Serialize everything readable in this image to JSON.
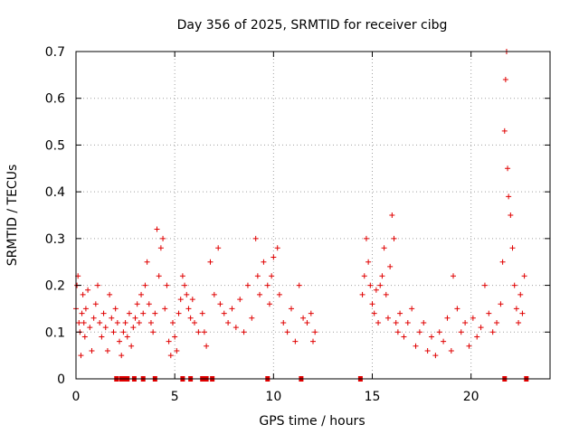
{
  "chart_data": {
    "type": "scatter",
    "title": "Day 356 of 2025, SRMTID for receiver cibg",
    "xlabel": "GPS time / hours",
    "ylabel": "SRMTID / TECUs",
    "xlim": [
      0,
      24
    ],
    "ylim": [
      0,
      0.7
    ],
    "xticks": [
      0,
      5,
      10,
      15,
      20
    ],
    "yticks": [
      0,
      0.1,
      0.2,
      0.3,
      0.4,
      0.5,
      0.6,
      0.7
    ],
    "xtick_labels": [
      "0",
      "5",
      "10",
      "15",
      "20"
    ],
    "ytick_labels": [
      "0",
      "0.1",
      "0.2",
      "0.3",
      "0.4",
      "0.5",
      "0.6",
      "0.7"
    ],
    "grid": true,
    "marker": "plus",
    "color": "#e00000",
    "series": [
      {
        "name": "SRMTID",
        "points": [
          [
            0.0,
            0.15
          ],
          [
            0.05,
            0.2
          ],
          [
            0.1,
            0.22
          ],
          [
            0.15,
            0.12
          ],
          [
            0.2,
            0.1
          ],
          [
            0.25,
            0.05
          ],
          [
            0.3,
            0.14
          ],
          [
            0.35,
            0.18
          ],
          [
            0.4,
            0.12
          ],
          [
            0.45,
            0.09
          ],
          [
            0.5,
            0.15
          ],
          [
            0.6,
            0.19
          ],
          [
            0.7,
            0.11
          ],
          [
            0.8,
            0.06
          ],
          [
            0.9,
            0.13
          ],
          [
            1.0,
            0.16
          ],
          [
            1.1,
            0.2
          ],
          [
            1.2,
            0.12
          ],
          [
            1.3,
            0.09
          ],
          [
            1.4,
            0.14
          ],
          [
            1.5,
            0.11
          ],
          [
            1.6,
            0.06
          ],
          [
            1.7,
            0.18
          ],
          [
            1.8,
            0.13
          ],
          [
            1.9,
            0.1
          ],
          [
            2.0,
            0.15
          ],
          [
            2.1,
            0.12
          ],
          [
            2.2,
            0.08
          ],
          [
            2.3,
            0.05
          ],
          [
            2.4,
            0.1
          ],
          [
            2.5,
            0.12
          ],
          [
            2.6,
            0.09
          ],
          [
            2.7,
            0.14
          ],
          [
            2.8,
            0.07
          ],
          [
            2.9,
            0.11
          ],
          [
            3.0,
            0.13
          ],
          [
            3.1,
            0.16
          ],
          [
            3.2,
            0.12
          ],
          [
            3.3,
            0.18
          ],
          [
            3.4,
            0.14
          ],
          [
            3.5,
            0.2
          ],
          [
            3.6,
            0.25
          ],
          [
            3.7,
            0.16
          ],
          [
            3.8,
            0.12
          ],
          [
            3.9,
            0.1
          ],
          [
            4.0,
            0.14
          ],
          [
            4.1,
            0.32
          ],
          [
            4.2,
            0.22
          ],
          [
            4.3,
            0.28
          ],
          [
            4.4,
            0.3
          ],
          [
            4.5,
            0.15
          ],
          [
            4.6,
            0.2
          ],
          [
            4.7,
            0.08
          ],
          [
            4.8,
            0.05
          ],
          [
            4.9,
            0.12
          ],
          [
            5.0,
            0.09
          ],
          [
            5.1,
            0.06
          ],
          [
            5.2,
            0.14
          ],
          [
            5.3,
            0.17
          ],
          [
            5.4,
            0.22
          ],
          [
            5.5,
            0.2
          ],
          [
            5.6,
            0.18
          ],
          [
            5.7,
            0.15
          ],
          [
            5.8,
            0.13
          ],
          [
            5.9,
            0.17
          ],
          [
            6.0,
            0.12
          ],
          [
            6.2,
            0.1
          ],
          [
            6.4,
            0.14
          ],
          [
            6.5,
            0.1
          ],
          [
            6.6,
            0.07
          ],
          [
            6.8,
            0.25
          ],
          [
            7.0,
            0.18
          ],
          [
            7.2,
            0.28
          ],
          [
            7.3,
            0.16
          ],
          [
            7.5,
            0.14
          ],
          [
            7.7,
            0.12
          ],
          [
            7.9,
            0.15
          ],
          [
            8.1,
            0.11
          ],
          [
            8.3,
            0.17
          ],
          [
            8.5,
            0.1
          ],
          [
            8.7,
            0.2
          ],
          [
            8.9,
            0.13
          ],
          [
            9.1,
            0.3
          ],
          [
            9.2,
            0.22
          ],
          [
            9.3,
            0.18
          ],
          [
            9.5,
            0.25
          ],
          [
            9.7,
            0.2
          ],
          [
            9.8,
            0.16
          ],
          [
            9.9,
            0.22
          ],
          [
            10.0,
            0.26
          ],
          [
            10.2,
            0.28
          ],
          [
            10.3,
            0.18
          ],
          [
            10.5,
            0.12
          ],
          [
            10.7,
            0.1
          ],
          [
            10.9,
            0.15
          ],
          [
            11.1,
            0.08
          ],
          [
            11.3,
            0.2
          ],
          [
            11.5,
            0.13
          ],
          [
            11.7,
            0.12
          ],
          [
            11.9,
            0.14
          ],
          [
            12.0,
            0.08
          ],
          [
            12.1,
            0.1
          ],
          [
            14.5,
            0.18
          ],
          [
            14.6,
            0.22
          ],
          [
            14.7,
            0.3
          ],
          [
            14.8,
            0.25
          ],
          [
            14.9,
            0.2
          ],
          [
            15.0,
            0.16
          ],
          [
            15.1,
            0.14
          ],
          [
            15.2,
            0.19
          ],
          [
            15.3,
            0.12
          ],
          [
            15.4,
            0.2
          ],
          [
            15.5,
            0.22
          ],
          [
            15.6,
            0.28
          ],
          [
            15.7,
            0.18
          ],
          [
            15.8,
            0.13
          ],
          [
            15.9,
            0.24
          ],
          [
            16.0,
            0.35
          ],
          [
            16.1,
            0.3
          ],
          [
            16.2,
            0.12
          ],
          [
            16.3,
            0.1
          ],
          [
            16.4,
            0.14
          ],
          [
            16.6,
            0.09
          ],
          [
            16.8,
            0.12
          ],
          [
            17.0,
            0.15
          ],
          [
            17.2,
            0.07
          ],
          [
            17.4,
            0.1
          ],
          [
            17.6,
            0.12
          ],
          [
            17.8,
            0.06
          ],
          [
            18.0,
            0.09
          ],
          [
            18.2,
            0.05
          ],
          [
            18.4,
            0.1
          ],
          [
            18.6,
            0.08
          ],
          [
            18.8,
            0.13
          ],
          [
            19.0,
            0.06
          ],
          [
            19.1,
            0.22
          ],
          [
            19.3,
            0.15
          ],
          [
            19.5,
            0.1
          ],
          [
            19.7,
            0.12
          ],
          [
            19.9,
            0.07
          ],
          [
            20.1,
            0.13
          ],
          [
            20.3,
            0.09
          ],
          [
            20.5,
            0.11
          ],
          [
            20.7,
            0.2
          ],
          [
            20.9,
            0.14
          ],
          [
            21.1,
            0.1
          ],
          [
            21.3,
            0.12
          ],
          [
            21.5,
            0.16
          ],
          [
            21.6,
            0.25
          ],
          [
            21.7,
            0.53
          ],
          [
            21.75,
            0.64
          ],
          [
            21.8,
            0.7
          ],
          [
            21.85,
            0.45
          ],
          [
            21.9,
            0.39
          ],
          [
            22.0,
            0.35
          ],
          [
            22.1,
            0.28
          ],
          [
            22.2,
            0.2
          ],
          [
            22.3,
            0.15
          ],
          [
            22.4,
            0.12
          ],
          [
            22.5,
            0.18
          ],
          [
            22.6,
            0.14
          ],
          [
            22.7,
            0.22
          ]
        ],
        "zero_points": [
          2.05,
          2.3,
          2.45,
          2.6,
          2.95,
          3.4,
          4.0,
          5.4,
          5.8,
          6.4,
          6.6,
          6.9,
          9.7,
          11.4,
          14.4,
          21.7,
          22.8
        ]
      }
    ]
  }
}
